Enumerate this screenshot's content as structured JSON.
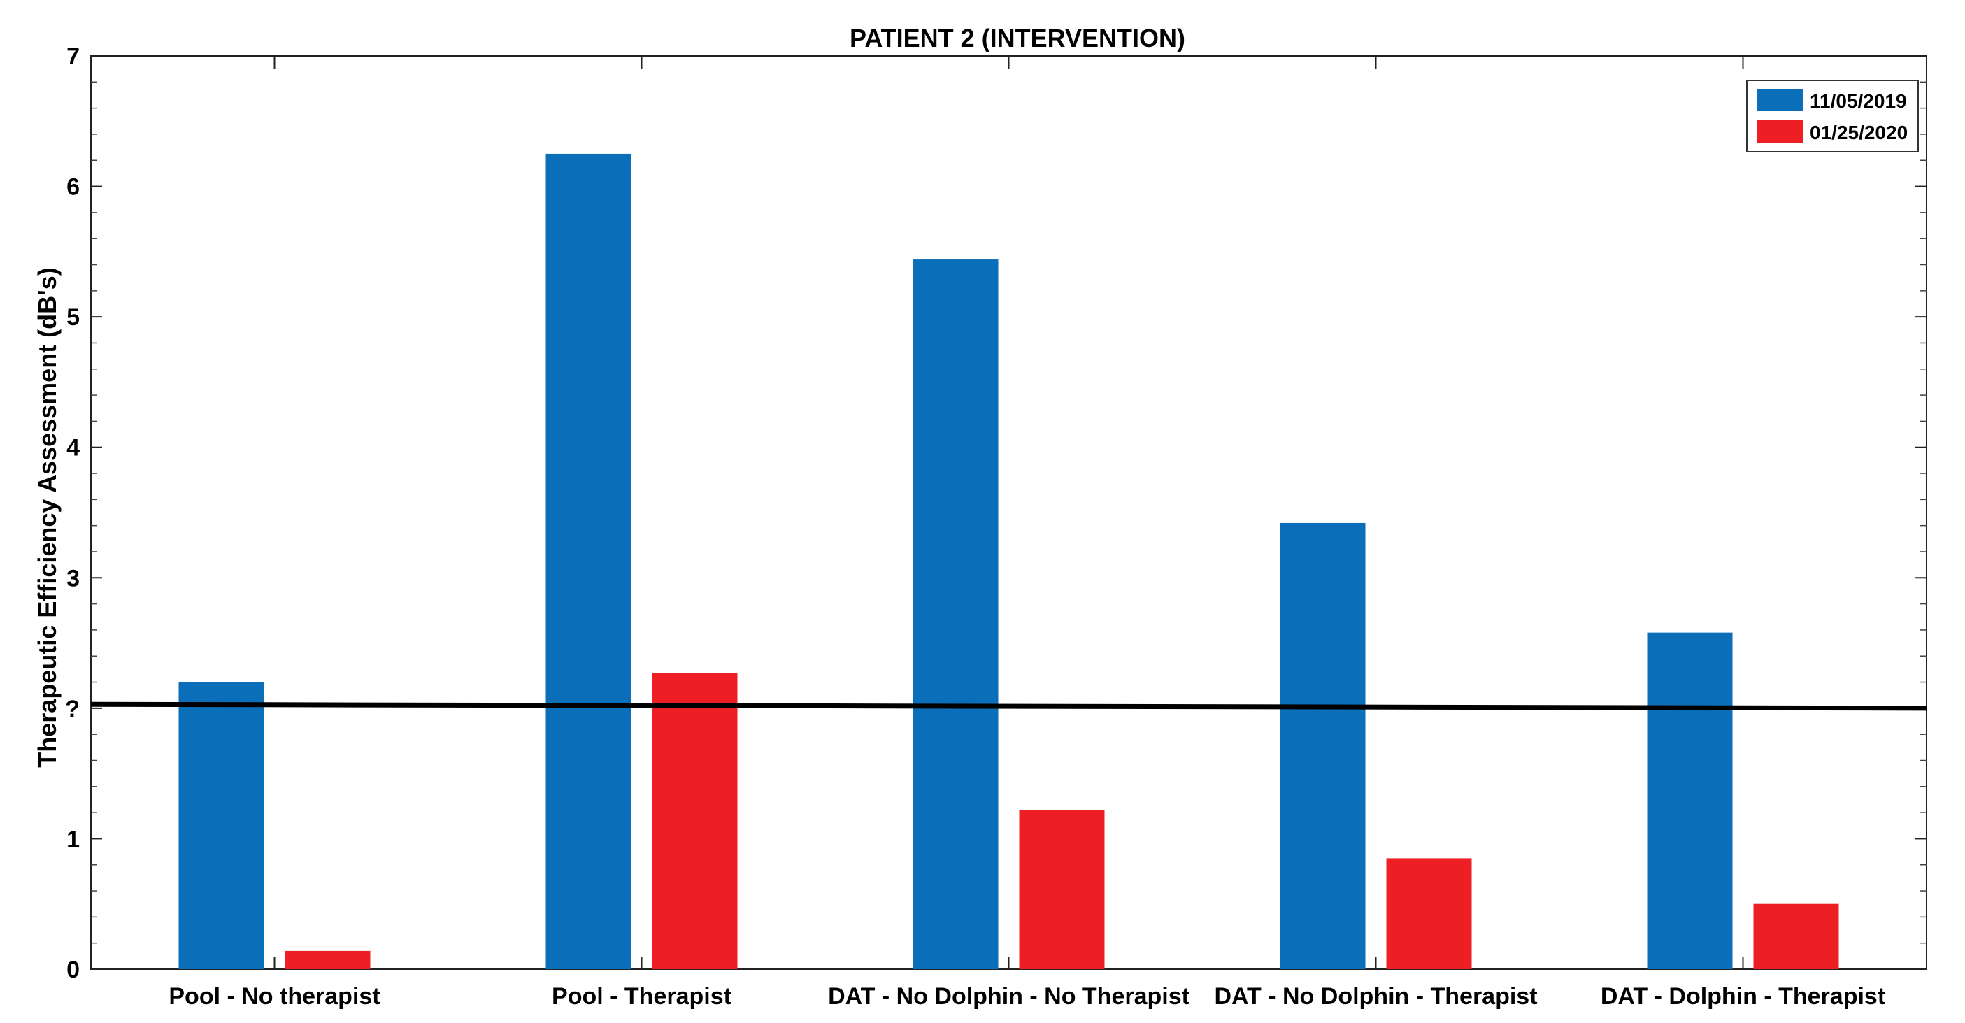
{
  "chart_data": {
    "type": "bar",
    "title": "PATIENT 2 (INTERVENTION)",
    "xlabel": "",
    "ylabel": "Therapeutic Efficiency Assessment (dB's)",
    "ylim": [
      0,
      7
    ],
    "yticks": [
      {
        "value": 0,
        "label": "0"
      },
      {
        "value": 1,
        "label": "1"
      },
      {
        "value": 2,
        "label": "?"
      },
      {
        "value": 3,
        "label": "3"
      },
      {
        "value": 4,
        "label": "4"
      },
      {
        "value": 5,
        "label": "5"
      },
      {
        "value": 6,
        "label": "6"
      },
      {
        "value": 7,
        "label": "7"
      }
    ],
    "categories": [
      "Pool - No therapist",
      "Pool - Therapist",
      "DAT - No Dolphin - No Therapist",
      "DAT - No Dolphin - Therapist",
      "DAT -  Dolphin - Therapist"
    ],
    "series": [
      {
        "name": "11/05/2019",
        "color": "#0a6eb9",
        "values": [
          2.2,
          6.25,
          5.44,
          3.42,
          2.58
        ]
      },
      {
        "name": "01/25/2020",
        "color": "#ed1f24",
        "values": [
          0.14,
          2.27,
          1.22,
          0.85,
          0.5
        ]
      }
    ],
    "reference_line": {
      "color": "#000000",
      "value_start": 2.03,
      "value_end": 2.0
    },
    "grid": false,
    "legend": "top-right"
  }
}
